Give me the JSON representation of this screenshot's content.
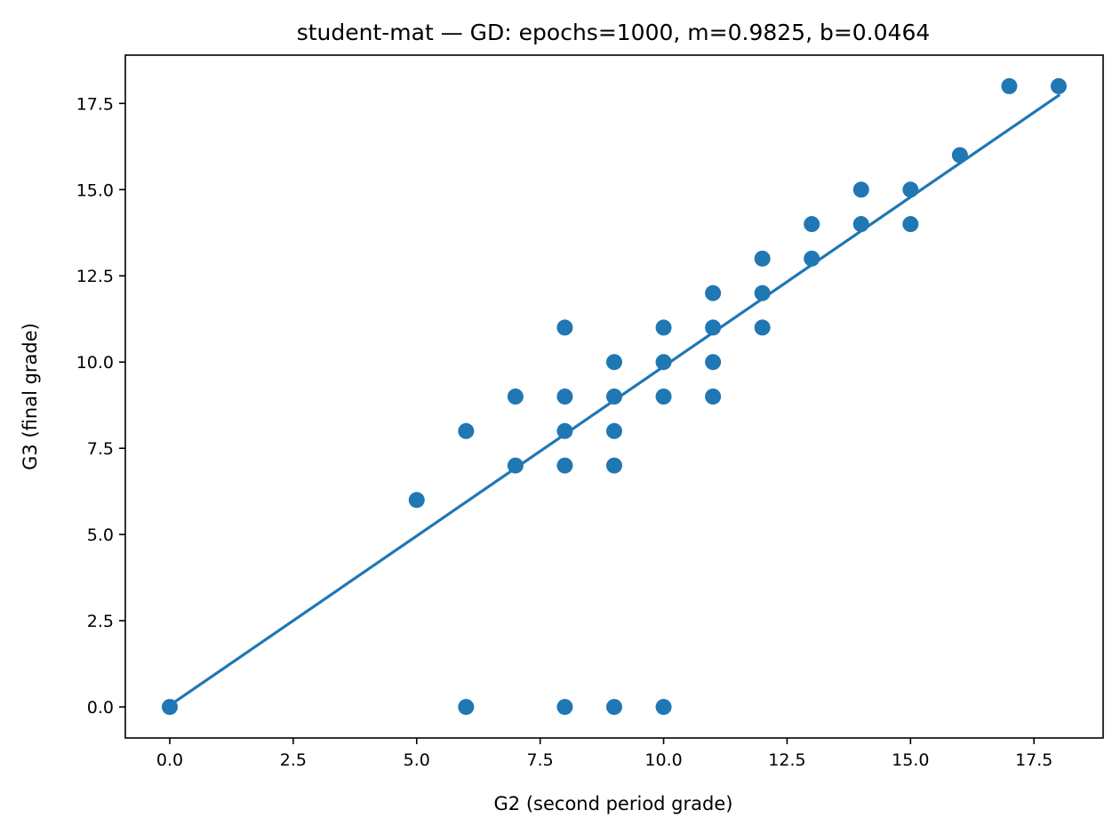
{
  "chart_data": {
    "type": "scatter",
    "title": "student-mat — GD: epochs=1000, m=0.9825, b=0.0464",
    "xlabel": "G2 (second period grade)",
    "ylabel": "G3 (final grade)",
    "xlim": [
      -0.9,
      18.9
    ],
    "ylim": [
      -0.9,
      18.9
    ],
    "xticks": [
      0.0,
      2.5,
      5.0,
      7.5,
      10.0,
      12.5,
      15.0,
      17.5
    ],
    "yticks": [
      0.0,
      2.5,
      5.0,
      7.5,
      10.0,
      12.5,
      15.0,
      17.5
    ],
    "xtick_labels": [
      "0.0",
      "2.5",
      "5.0",
      "7.5",
      "10.0",
      "12.5",
      "15.0",
      "17.5"
    ],
    "ytick_labels": [
      "0.0",
      "2.5",
      "5.0",
      "7.5",
      "10.0",
      "12.5",
      "15.0",
      "17.5"
    ],
    "grid": false,
    "color": "#1f77b4",
    "points": [
      [
        0,
        0
      ],
      [
        5,
        6
      ],
      [
        6,
        8
      ],
      [
        6,
        0
      ],
      [
        7,
        9
      ],
      [
        7,
        7
      ],
      [
        8,
        11
      ],
      [
        8,
        9
      ],
      [
        8,
        8
      ],
      [
        8,
        7
      ],
      [
        8,
        0
      ],
      [
        9,
        10
      ],
      [
        9,
        9
      ],
      [
        9,
        8
      ],
      [
        9,
        7
      ],
      [
        9,
        0
      ],
      [
        10,
        11
      ],
      [
        10,
        10
      ],
      [
        10,
        9
      ],
      [
        10,
        0
      ],
      [
        11,
        12
      ],
      [
        11,
        11
      ],
      [
        11,
        10
      ],
      [
        11,
        9
      ],
      [
        12,
        13
      ],
      [
        12,
        12
      ],
      [
        12,
        11
      ],
      [
        13,
        14
      ],
      [
        13,
        13
      ],
      [
        14,
        15
      ],
      [
        14,
        14
      ],
      [
        15,
        15
      ],
      [
        15,
        14
      ],
      [
        16,
        16
      ],
      [
        17,
        18
      ],
      [
        18,
        18
      ]
    ],
    "fit_line": {
      "m": 0.9825,
      "b": 0.0464,
      "x_range": [
        0,
        18
      ]
    }
  }
}
